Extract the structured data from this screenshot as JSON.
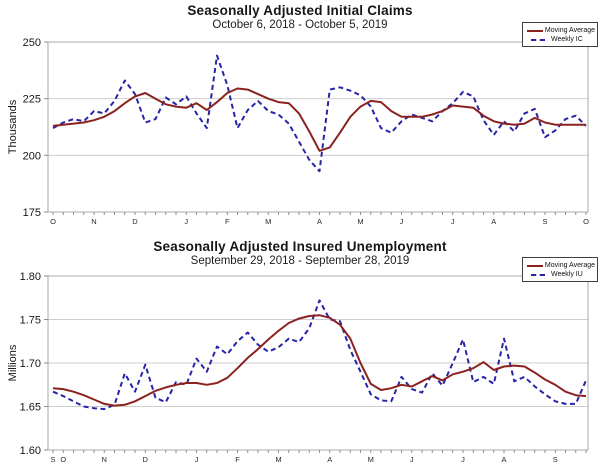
{
  "page": {
    "background": "#ffffff"
  },
  "charts": [
    {
      "title": "Seasonally Adjusted Initial Claims",
      "subtitle": "October 6, 2018 - October 5, 2019",
      "y_unit_label": "Thousands",
      "legend": [
        {
          "label": "Moving Average",
          "style": "solid",
          "color": "#8b2220"
        },
        {
          "label": "Weekly IC",
          "style": "dashed",
          "color": "#2525a5"
        }
      ],
      "chart_data": {
        "type": "line",
        "title": "Seasonally Adjusted Initial Claims",
        "subtitle": "October 6, 2018 - October 5, 2019",
        "ylabel": "Thousands",
        "ylim": [
          175,
          250
        ],
        "grid": true,
        "legend_position": "top-right",
        "weeks": 53,
        "yticks": [
          {
            "label": "250",
            "value": 250
          },
          {
            "label": "225",
            "value": 225
          },
          {
            "label": "200",
            "value": 200
          },
          {
            "label": "175",
            "value": 175
          }
        ],
        "month_labels": [
          {
            "label": "O",
            "week": 0
          },
          {
            "label": "N",
            "week": 4
          },
          {
            "label": "D",
            "week": 8
          },
          {
            "label": "J",
            "week": 13
          },
          {
            "label": "F",
            "week": 17
          },
          {
            "label": "M",
            "week": 21
          },
          {
            "label": "A",
            "week": 26
          },
          {
            "label": "M",
            "week": 30
          },
          {
            "label": "J",
            "week": 34
          },
          {
            "label": "J",
            "week": 39
          },
          {
            "label": "A",
            "week": 43
          },
          {
            "label": "S",
            "week": 48
          },
          {
            "label": "O",
            "week": 52
          }
        ],
        "series": [
          {
            "name": "Moving Average",
            "color": "#8b2220",
            "style": "solid",
            "values": [
              213,
              213.5,
              214,
              214.5,
              215.5,
              217,
              219.5,
              223,
              226,
              227.5,
              225,
              222.5,
              221.5,
              221,
              223,
              220,
              223.5,
              227.5,
              229.5,
              229,
              227,
              225,
              223.5,
              223,
              218.5,
              210.5,
              202,
              203.5,
              210,
              217,
              221.5,
              224,
              223.5,
              219.5,
              217,
              217,
              217,
              218,
              219.5,
              222,
              221.5,
              221,
              217.5,
              215,
              214,
              213.5,
              214,
              216.5,
              214.5,
              213.5,
              213.5,
              213.5,
              213.5
            ]
          },
          {
            "name": "Weekly IC",
            "color": "#2525a5",
            "style": "dashed",
            "values": [
              212,
              214.5,
              216,
              215,
              219.5,
              218.5,
              224,
              233,
              227,
              214.5,
              216,
              225.5,
              222.5,
              226,
              218.5,
              212,
              244,
              231,
              212,
              220,
              224,
              219.5,
              218,
              214,
              206,
              198,
              193,
              229,
              230,
              228.5,
              226.5,
              221.5,
              212,
              210,
              215,
              218,
              216.5,
              215,
              219.5,
              223,
              228,
              226,
              215.5,
              209,
              215,
              210.5,
              218.5,
              220.5,
              208,
              211,
              216,
              217.5,
              213
            ]
          }
        ]
      }
    },
    {
      "title": "Seasonally Adjusted Insured Unemployment",
      "subtitle": "September 29, 2018 - September 28, 2019",
      "y_unit_label": "Millions",
      "legend": [
        {
          "label": "Moving Average",
          "style": "solid",
          "color": "#8b2220"
        },
        {
          "label": "Weekly IU",
          "style": "dashed",
          "color": "#2525a5"
        }
      ],
      "chart_data": {
        "type": "line",
        "title": "Seasonally Adjusted Insured Unemployment",
        "subtitle": "September 29, 2018 - September 28, 2019",
        "ylabel": "Millions",
        "ylim": [
          1.6,
          1.8
        ],
        "grid": true,
        "legend_position": "top-right",
        "weeks": 53,
        "yticks": [
          {
            "label": "1.80",
            "value": 1.8
          },
          {
            "label": "1.75",
            "value": 1.75
          },
          {
            "label": "1.70",
            "value": 1.7
          },
          {
            "label": "1.65",
            "value": 1.65
          },
          {
            "label": "1.60",
            "value": 1.6
          }
        ],
        "month_labels": [
          {
            "label": "S",
            "week": 0
          },
          {
            "label": "O",
            "week": 1
          },
          {
            "label": "N",
            "week": 5
          },
          {
            "label": "D",
            "week": 9
          },
          {
            "label": "J",
            "week": 14
          },
          {
            "label": "F",
            "week": 18
          },
          {
            "label": "M",
            "week": 22
          },
          {
            "label": "A",
            "week": 27
          },
          {
            "label": "M",
            "week": 31
          },
          {
            "label": "J",
            "week": 35
          },
          {
            "label": "J",
            "week": 40
          },
          {
            "label": "A",
            "week": 44
          },
          {
            "label": "S",
            "week": 49
          }
        ],
        "series": [
          {
            "name": "Moving Average",
            "color": "#8b2220",
            "style": "solid",
            "values": [
              1.671,
              1.67,
              1.667,
              1.663,
              1.658,
              1.653,
              1.651,
              1.652,
              1.656,
              1.662,
              1.668,
              1.672,
              1.675,
              1.677,
              1.677,
              1.675,
              1.677,
              1.683,
              1.694,
              1.706,
              1.716,
              1.727,
              1.737,
              1.746,
              1.751,
              1.754,
              1.755,
              1.752,
              1.744,
              1.728,
              1.7,
              1.676,
              1.669,
              1.671,
              1.675,
              1.673,
              1.679,
              1.685,
              1.68,
              1.687,
              1.69,
              1.694,
              1.701,
              1.692,
              1.696,
              1.697,
              1.696,
              1.689,
              1.681,
              1.675,
              1.667,
              1.663,
              1.662
            ]
          },
          {
            "name": "Weekly IU",
            "color": "#2525a5",
            "style": "dashed",
            "values": [
              1.667,
              1.662,
              1.656,
              1.65,
              1.648,
              1.647,
              1.652,
              1.688,
              1.667,
              1.698,
              1.66,
              1.655,
              1.678,
              1.675,
              1.705,
              1.69,
              1.719,
              1.71,
              1.725,
              1.735,
              1.721,
              1.713,
              1.718,
              1.728,
              1.724,
              1.74,
              1.772,
              1.75,
              1.748,
              1.715,
              1.69,
              1.664,
              1.657,
              1.656,
              1.684,
              1.67,
              1.666,
              1.688,
              1.674,
              1.7,
              1.727,
              1.678,
              1.684,
              1.676,
              1.728,
              1.679,
              1.684,
              1.673,
              1.664,
              1.656,
              1.653,
              1.653,
              1.68
            ]
          }
        ]
      }
    }
  ]
}
